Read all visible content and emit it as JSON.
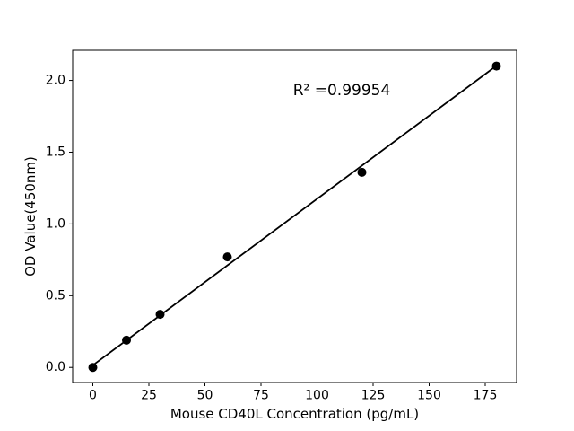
{
  "figure": {
    "background": "#ffffff"
  },
  "chart_data": {
    "type": "scatter",
    "title": "",
    "xlabel": "Mouse CD40L Concentration (pg/mL)",
    "ylabel": "OD Value(450nm)",
    "x": [
      0,
      15,
      30,
      60,
      120,
      180
    ],
    "y": [
      0.0,
      0.19,
      0.37,
      0.77,
      1.36,
      2.1
    ],
    "fit_line": {
      "x": [
        0,
        180
      ],
      "y": [
        0.015,
        2.102
      ]
    },
    "annotation": {
      "text": "R² =0.99954",
      "x": 111,
      "y": 1.93
    },
    "xticks": [
      0,
      25,
      50,
      75,
      100,
      125,
      150,
      175
    ],
    "xtick_labels": [
      "0",
      "25",
      "50",
      "75",
      "100",
      "125",
      "150",
      "175"
    ],
    "yticks": [
      0,
      0.5,
      1.0,
      1.5,
      2.0
    ],
    "ytick_labels": [
      "0.0",
      "0.5",
      "1.0",
      "1.5",
      "2.0"
    ],
    "xlim": [
      -9,
      189
    ],
    "ylim": [
      -0.105,
      2.21
    ],
    "grid": false,
    "legend": null,
    "marker_color": "#000000",
    "marker_radius": 5,
    "line_color": "#000000",
    "line_width": 1.8,
    "axis_color": "#000000",
    "background": "#ffffff"
  }
}
